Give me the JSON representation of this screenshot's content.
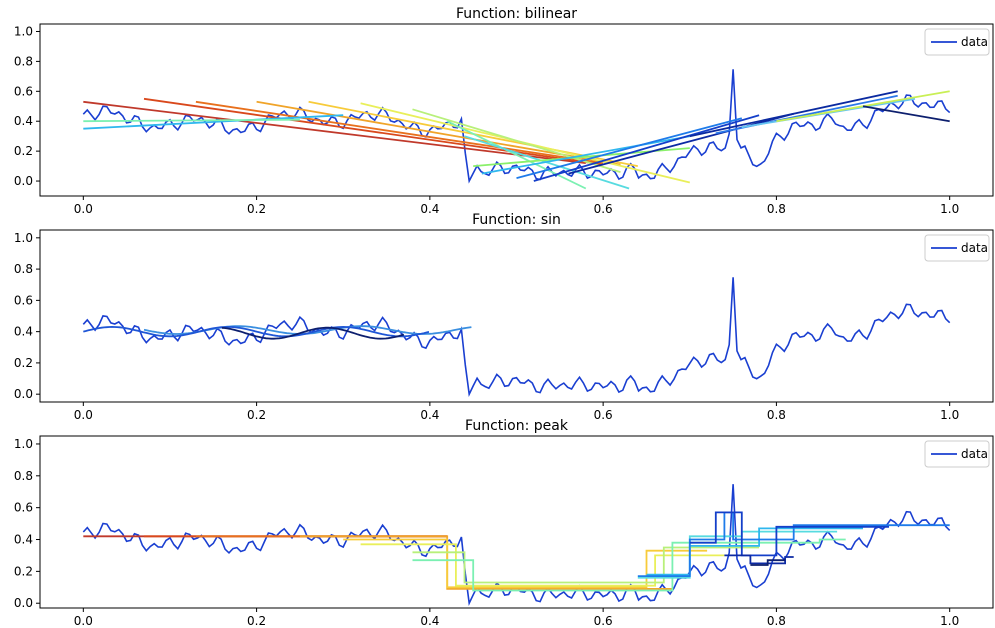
{
  "chart_data": [
    {
      "type": "line",
      "title": "Function: bilinear",
      "xlim": [
        -0.05,
        1.05
      ],
      "ylim": [
        -0.1,
        1.05
      ],
      "xticks": [
        "0.0",
        "0.2",
        "0.4",
        "0.6",
        "0.8",
        "1.0"
      ],
      "yticks": [
        "0.0",
        "0.2",
        "0.4",
        "0.6",
        "0.8",
        "1.0"
      ],
      "legend": {
        "label": "data",
        "position": "top-right"
      },
      "grid": false,
      "data_series": {
        "name": "data",
        "color": "#1a3fd1"
      },
      "fit_lines": [
        {
          "x": [
            0.0,
            0.58
          ],
          "y": [
            0.53,
            0.12
          ],
          "color": "#c0392b"
        },
        {
          "x": [
            0.07,
            0.6
          ],
          "y": [
            0.55,
            0.11
          ],
          "color": "#d9481c"
        },
        {
          "x": [
            0.13,
            0.6
          ],
          "y": [
            0.53,
            0.12
          ],
          "color": "#e8701d"
        },
        {
          "x": [
            0.2,
            0.62
          ],
          "y": [
            0.53,
            0.11
          ],
          "color": "#f0a429"
        },
        {
          "x": [
            0.26,
            0.64
          ],
          "y": [
            0.53,
            0.1
          ],
          "color": "#f7cb3a"
        },
        {
          "x": [
            0.32,
            0.7
          ],
          "y": [
            0.52,
            -0.01
          ],
          "color": "#e9ef5a"
        },
        {
          "x": [
            0.38,
            0.62
          ],
          "y": [
            0.48,
            0.06
          ],
          "color": "#b8f07a"
        },
        {
          "x": [
            0.42,
            0.58
          ],
          "y": [
            0.4,
            -0.05
          ],
          "color": "#7bf0b2"
        },
        {
          "x": [
            0.44,
            0.63
          ],
          "y": [
            0.3,
            -0.05
          ],
          "color": "#57dbe0"
        },
        {
          "x": [
            0.45,
            0.7
          ],
          "y": [
            0.1,
            0.22
          ],
          "color": "#8af06a"
        },
        {
          "x": [
            0.46,
            0.7
          ],
          "y": [
            0.05,
            0.3
          ],
          "color": "#2fb7ee"
        },
        {
          "x": [
            0.5,
            0.76
          ],
          "y": [
            0.02,
            0.42
          ],
          "color": "#1e7bea"
        },
        {
          "x": [
            0.52,
            0.78
          ],
          "y": [
            0.0,
            0.44
          ],
          "color": "#143fc9"
        },
        {
          "x": [
            0.56,
            0.82
          ],
          "y": [
            0.05,
            0.45
          ],
          "color": "#0d2aa3"
        },
        {
          "x": [
            0.7,
            0.94
          ],
          "y": [
            0.3,
            0.6
          ],
          "color": "#0b2aa0"
        },
        {
          "x": [
            0.73,
            0.94
          ],
          "y": [
            0.32,
            0.57
          ],
          "color": "#2b78e8"
        },
        {
          "x": [
            0.76,
            0.96
          ],
          "y": [
            0.36,
            0.55
          ],
          "color": "#67c5f0"
        },
        {
          "x": [
            0.8,
            1.0
          ],
          "y": [
            0.4,
            0.6
          ],
          "color": "#c9ef55"
        },
        {
          "x": [
            0.9,
            1.0
          ],
          "y": [
            0.5,
            0.4
          ],
          "color": "#0d1f6e"
        },
        {
          "x": [
            0.0,
            0.3
          ],
          "y": [
            0.35,
            0.44
          ],
          "color": "#2fb7ee"
        },
        {
          "x": [
            0.0,
            0.25
          ],
          "y": [
            0.4,
            0.41
          ],
          "color": "#7bf0b2"
        }
      ]
    },
    {
      "type": "line",
      "title": "Function: sin",
      "xlim": [
        -0.05,
        1.05
      ],
      "ylim": [
        -0.05,
        1.05
      ],
      "xticks": [
        "0.0",
        "0.2",
        "0.4",
        "0.6",
        "0.8",
        "1.0"
      ],
      "yticks": [
        "0.0",
        "0.2",
        "0.4",
        "0.6",
        "0.8",
        "1.0"
      ],
      "legend": {
        "label": "data",
        "position": "top-right"
      },
      "grid": false,
      "data_series": {
        "name": "data",
        "color": "#1a3fd1"
      },
      "fit_lines": [
        {
          "x": [
            0.07,
            0.45
          ],
          "mean": 0.41,
          "amp": 0.025,
          "freq": 28,
          "color": "#3a8fe0"
        },
        {
          "x": [
            0.0,
            0.4
          ],
          "mean": 0.4,
          "amp": 0.03,
          "freq": 30,
          "color": "#1f56d6"
        },
        {
          "x": [
            0.16,
            0.37
          ],
          "mean": 0.39,
          "amp": 0.035,
          "freq": 32,
          "color": "#0d1f6e"
        }
      ]
    },
    {
      "type": "line",
      "title": "Function: peak",
      "xlim": [
        -0.05,
        1.05
      ],
      "ylim": [
        -0.03,
        1.05
      ],
      "xticks": [
        "0.0",
        "0.2",
        "0.4",
        "0.6",
        "0.8",
        "1.0"
      ],
      "yticks": [
        "0.0",
        "0.2",
        "0.4",
        "0.6",
        "0.8",
        "1.0"
      ],
      "legend": {
        "label": "data",
        "position": "top-right"
      },
      "grid": false,
      "data_series": {
        "name": "data",
        "color": "#1a3fd1"
      },
      "fit_lines": [
        {
          "steps": [
            [
              0.0,
              0.42
            ],
            [
              0.42,
              0.42
            ]
          ],
          "color": "#c0392b"
        },
        {
          "steps": [
            [
              0.07,
              0.42
            ],
            [
              0.42,
              0.42
            ]
          ],
          "color": "#d9481c"
        },
        {
          "steps": [
            [
              0.13,
              0.42
            ],
            [
              0.42,
              0.42
            ]
          ],
          "color": "#e8701d"
        },
        {
          "steps": [
            [
              0.25,
              0.42
            ],
            [
              0.42,
              0.42
            ],
            [
              0.42,
              0.09
            ],
            [
              0.68,
              0.09
            ]
          ],
          "color": "#f0a429"
        },
        {
          "steps": [
            [
              0.3,
              0.4
            ],
            [
              0.42,
              0.4
            ],
            [
              0.42,
              0.1
            ],
            [
              0.65,
              0.1
            ],
            [
              0.65,
              0.33
            ],
            [
              0.72,
              0.33
            ]
          ],
          "color": "#f7cb3a"
        },
        {
          "steps": [
            [
              0.32,
              0.37
            ],
            [
              0.43,
              0.37
            ],
            [
              0.43,
              0.11
            ],
            [
              0.66,
              0.11
            ],
            [
              0.66,
              0.3
            ],
            [
              0.74,
              0.3
            ]
          ],
          "color": "#e9ef5a"
        },
        {
          "steps": [
            [
              0.38,
              0.32
            ],
            [
              0.44,
              0.32
            ],
            [
              0.44,
              0.13
            ],
            [
              0.67,
              0.13
            ],
            [
              0.67,
              0.35
            ],
            [
              0.78,
              0.35
            ]
          ],
          "color": "#b8f07a"
        },
        {
          "steps": [
            [
              0.38,
              0.27
            ],
            [
              0.45,
              0.27
            ],
            [
              0.45,
              0.08
            ],
            [
              0.68,
              0.08
            ],
            [
              0.68,
              0.38
            ],
            [
              0.85,
              0.38
            ],
            [
              0.85,
              0.4
            ],
            [
              0.88,
              0.4
            ]
          ],
          "color": "#7bf0b2"
        },
        {
          "steps": [
            [
              0.64,
              0.16
            ],
            [
              0.7,
              0.16
            ],
            [
              0.7,
              0.42
            ],
            [
              0.76,
              0.42
            ],
            [
              0.76,
              0.45
            ],
            [
              0.87,
              0.45
            ]
          ],
          "color": "#57dbe0"
        },
        {
          "steps": [
            [
              0.65,
              0.18
            ],
            [
              0.7,
              0.18
            ],
            [
              0.7,
              0.36
            ],
            [
              0.78,
              0.36
            ],
            [
              0.78,
              0.47
            ],
            [
              0.9,
              0.47
            ]
          ],
          "color": "#2fb7ee"
        },
        {
          "steps": [
            [
              0.64,
              0.17
            ],
            [
              0.7,
              0.17
            ],
            [
              0.7,
              0.4
            ],
            [
              0.74,
              0.4
            ],
            [
              0.74,
              0.57
            ],
            [
              0.75,
              0.57
            ],
            [
              0.75,
              0.4
            ],
            [
              0.82,
              0.4
            ],
            [
              0.82,
              0.49
            ],
            [
              1.0,
              0.49
            ]
          ],
          "color": "#1e7bea"
        },
        {
          "steps": [
            [
              0.7,
              0.38
            ],
            [
              0.73,
              0.38
            ],
            [
              0.73,
              0.57
            ],
            [
              0.76,
              0.57
            ],
            [
              0.76,
              0.3
            ],
            [
              0.8,
              0.3
            ],
            [
              0.8,
              0.48
            ],
            [
              0.93,
              0.48
            ]
          ],
          "color": "#143fc9"
        },
        {
          "steps": [
            [
              0.74,
              0.3
            ],
            [
              0.77,
              0.3
            ],
            [
              0.77,
              0.25
            ],
            [
              0.81,
              0.25
            ],
            [
              0.81,
              0.29
            ],
            [
              0.82,
              0.29
            ]
          ],
          "color": "#0d2aa3"
        },
        {
          "steps": [
            [
              0.77,
              0.24
            ],
            [
              0.79,
              0.24
            ],
            [
              0.79,
              0.27
            ],
            [
              0.81,
              0.27
            ]
          ],
          "color": "#0d1f6e"
        }
      ]
    }
  ]
}
